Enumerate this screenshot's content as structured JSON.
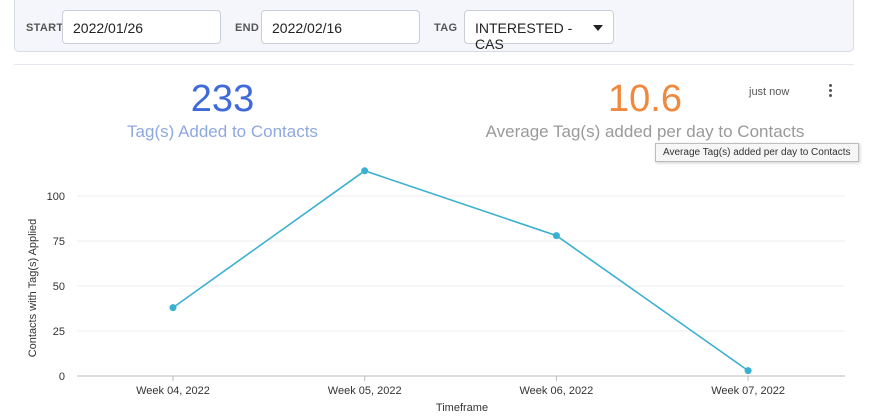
{
  "filters": {
    "start_label": "START",
    "start_value": "2022/01/26",
    "end_label": "END",
    "end_value": "2022/02/16",
    "tag_label": "TAG",
    "tag_value": "INTERESTED - CAS"
  },
  "stats": {
    "total": {
      "value": "233",
      "label": "Tag(s) Added to Contacts"
    },
    "average": {
      "value": "10.6",
      "label": "Average Tag(s) added per day to Contacts"
    }
  },
  "updated_text": "just now",
  "tooltip_text": "Average Tag(s) added per day to Contacts",
  "colors": {
    "total": "#3f6ad8",
    "average": "#f0883e",
    "line": "#3ab0cf"
  },
  "chart_data": {
    "type": "line",
    "x": [
      "Week 04, 2022",
      "Week 05, 2022",
      "Week 06, 2022",
      "Week 07, 2022"
    ],
    "series": [
      {
        "values": [
          38,
          114,
          78,
          3
        ]
      }
    ],
    "xlabel": "Timeframe",
    "ylabel": "Contacts with Tag(s) Applied",
    "yticks": [
      0,
      25,
      50,
      75,
      100
    ],
    "ylim": [
      0,
      120
    ],
    "grid": true
  }
}
